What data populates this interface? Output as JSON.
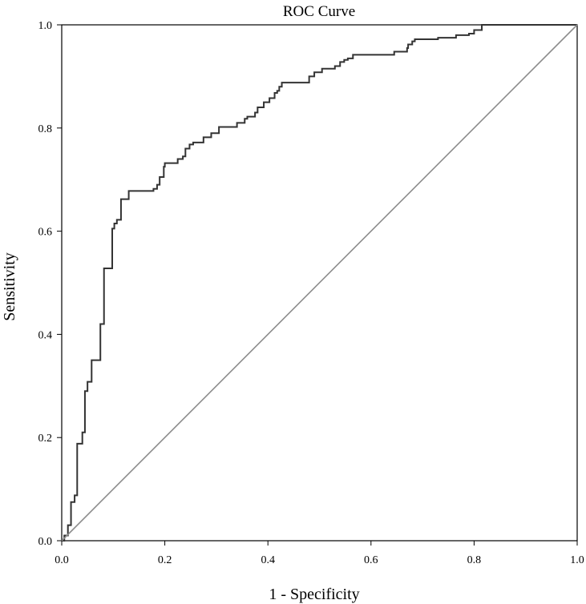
{
  "chart_data": {
    "type": "line",
    "title": "ROC Curve",
    "xlabel": "1 - Specificity",
    "ylabel": "Sensitivity",
    "xlim": [
      0,
      1
    ],
    "ylim": [
      0,
      1
    ],
    "x_ticks": [
      "0.0",
      "0.2",
      "0.4",
      "0.6",
      "0.8",
      "1.0"
    ],
    "y_ticks": [
      "0.0",
      "0.2",
      "0.4",
      "0.6",
      "0.8",
      "1.0"
    ],
    "grid": false,
    "legend": "none",
    "colors": {
      "roc": "#333333",
      "reference": "#8c8c8c",
      "axes": "#000000"
    },
    "series": [
      {
        "style": "step",
        "x": [
          0.0,
          0.005,
          0.005,
          0.012,
          0.012,
          0.018,
          0.018,
          0.025,
          0.025,
          0.03,
          0.03,
          0.04,
          0.04,
          0.045,
          0.045,
          0.05,
          0.05,
          0.058,
          0.058,
          0.065,
          0.065,
          0.075,
          0.075,
          0.082,
          0.082,
          0.098,
          0.098,
          0.102,
          0.102,
          0.107,
          0.107,
          0.115,
          0.115,
          0.13,
          0.13,
          0.178,
          0.178,
          0.185,
          0.185,
          0.19,
          0.19,
          0.198,
          0.198,
          0.2,
          0.2,
          0.225,
          0.225,
          0.235,
          0.235,
          0.24,
          0.24,
          0.248,
          0.248,
          0.255,
          0.255,
          0.275,
          0.275,
          0.29,
          0.29,
          0.305,
          0.305,
          0.34,
          0.34,
          0.355,
          0.355,
          0.36,
          0.36,
          0.375,
          0.375,
          0.38,
          0.38,
          0.392,
          0.392,
          0.403,
          0.403,
          0.413,
          0.413,
          0.418,
          0.418,
          0.422,
          0.422,
          0.427,
          0.427,
          0.48,
          0.48,
          0.49,
          0.49,
          0.505,
          0.505,
          0.53,
          0.53,
          0.54,
          0.54,
          0.548,
          0.548,
          0.555,
          0.555,
          0.565,
          0.565,
          0.645,
          0.645,
          0.67,
          0.67,
          0.672,
          0.672,
          0.68,
          0.68,
          0.685,
          0.685,
          0.73,
          0.73,
          0.765,
          0.765,
          0.79,
          0.79,
          0.8,
          0.8,
          0.815,
          0.815,
          1.0
        ],
        "y": [
          0.0,
          0.0,
          0.01,
          0.01,
          0.03,
          0.03,
          0.075,
          0.075,
          0.088,
          0.088,
          0.188,
          0.188,
          0.21,
          0.21,
          0.29,
          0.29,
          0.308,
          0.308,
          0.35,
          0.35,
          0.35,
          0.35,
          0.42,
          0.42,
          0.528,
          0.528,
          0.605,
          0.605,
          0.615,
          0.615,
          0.622,
          0.622,
          0.662,
          0.662,
          0.678,
          0.678,
          0.682,
          0.682,
          0.69,
          0.69,
          0.705,
          0.705,
          0.725,
          0.725,
          0.732,
          0.732,
          0.74,
          0.74,
          0.745,
          0.745,
          0.76,
          0.76,
          0.768,
          0.768,
          0.772,
          0.772,
          0.782,
          0.782,
          0.79,
          0.79,
          0.802,
          0.802,
          0.81,
          0.81,
          0.818,
          0.818,
          0.822,
          0.822,
          0.83,
          0.83,
          0.84,
          0.84,
          0.85,
          0.85,
          0.858,
          0.858,
          0.868,
          0.868,
          0.872,
          0.872,
          0.88,
          0.88,
          0.888,
          0.888,
          0.9,
          0.9,
          0.908,
          0.908,
          0.915,
          0.915,
          0.92,
          0.92,
          0.928,
          0.928,
          0.932,
          0.932,
          0.935,
          0.935,
          0.942,
          0.942,
          0.948,
          0.948,
          0.955,
          0.955,
          0.962,
          0.962,
          0.968,
          0.968,
          0.972,
          0.972,
          0.975,
          0.975,
          0.98,
          0.98,
          0.983,
          0.983,
          0.99,
          0.99,
          1.0,
          1.0
        ]
      },
      {
        "style": "reference",
        "x": [
          0,
          1
        ],
        "y": [
          0,
          1
        ]
      }
    ]
  }
}
